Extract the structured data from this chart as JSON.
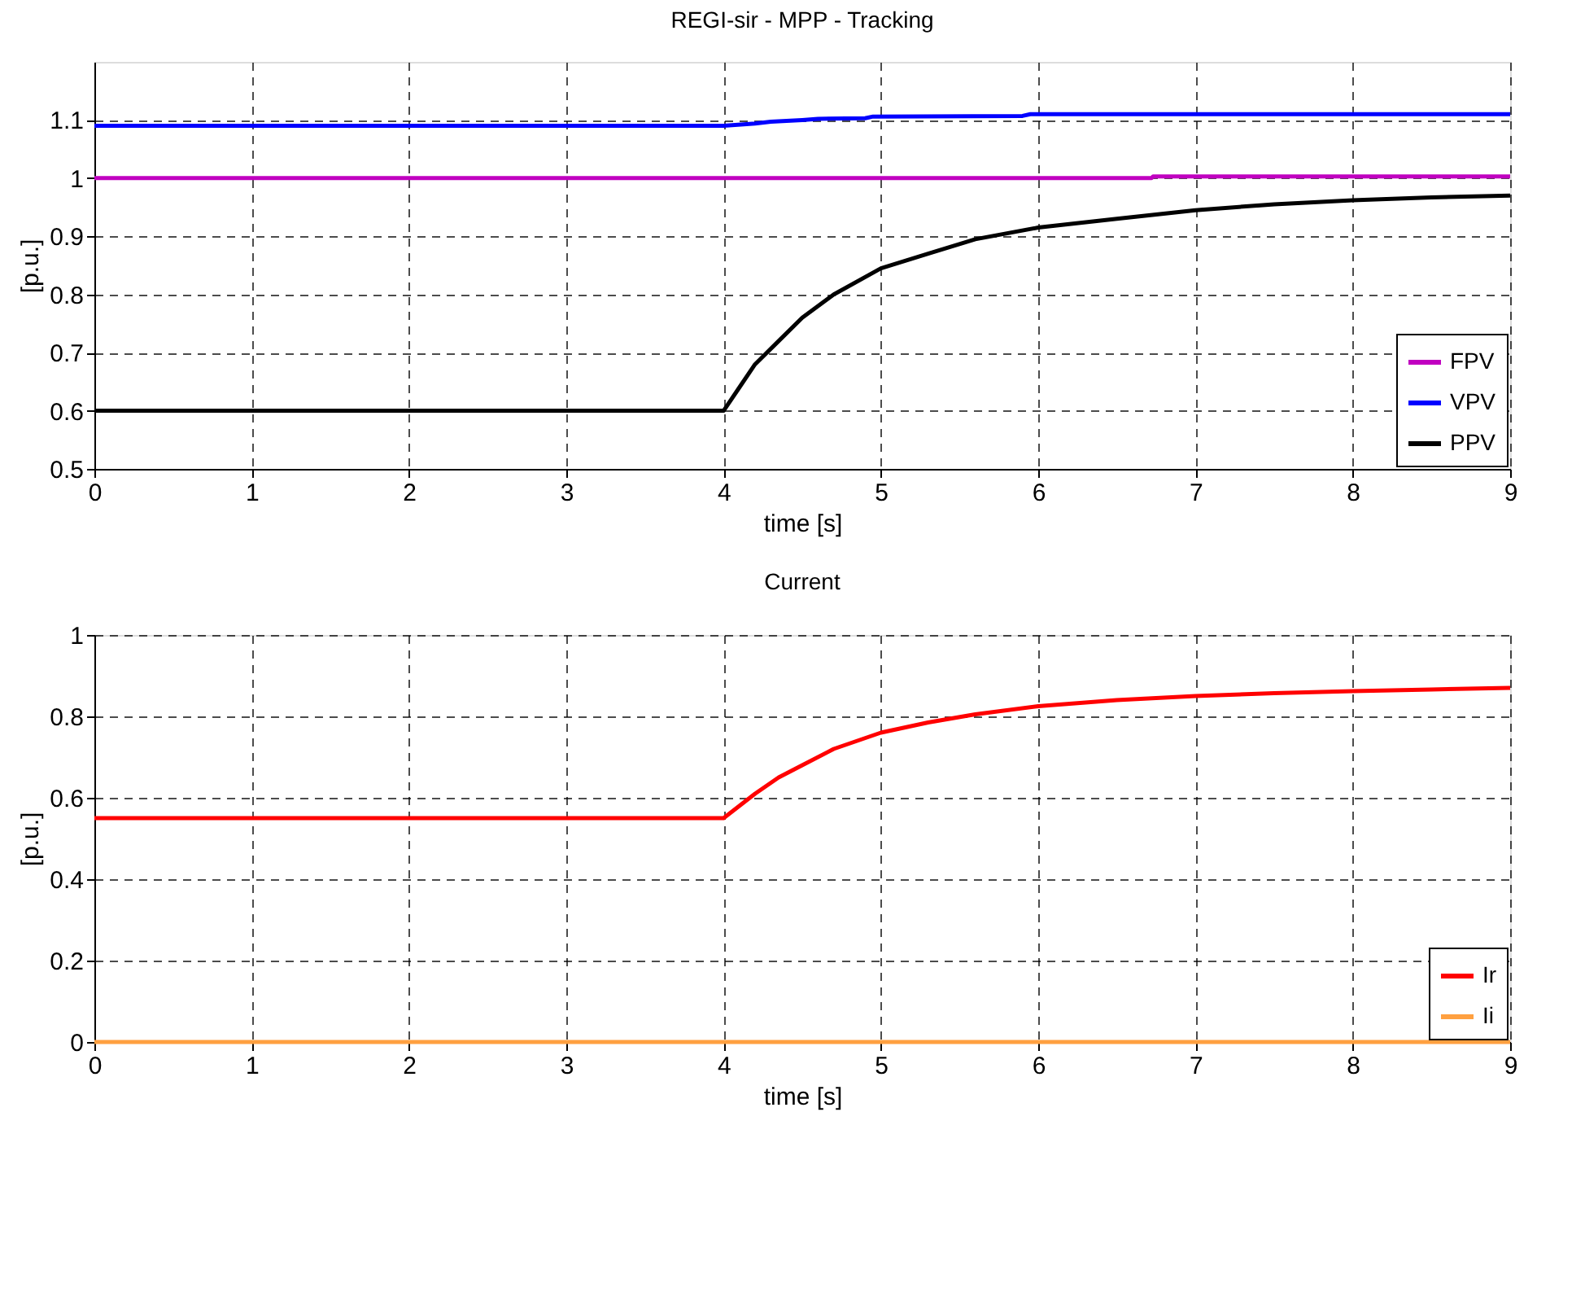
{
  "chart_data": [
    {
      "type": "line",
      "title": "REGI-sir -  MPP - Tracking",
      "xlabel": "time [s]",
      "ylabel": "[p.u.]",
      "xlim": [
        0,
        9
      ],
      "xticks": [
        0,
        1,
        2,
        3,
        4,
        5,
        6,
        7,
        8,
        9
      ],
      "ylim": [
        0.5,
        1.2
      ],
      "yticks": [
        0.5,
        0.6,
        0.7,
        0.8,
        0.9,
        1,
        1.1
      ],
      "grid": true,
      "legend": "bottom right",
      "line_style": "solid",
      "marker": "none",
      "series": [
        {
          "name": "FPV",
          "color": "#c000c0",
          "x": [
            0,
            6.72,
            6.73,
            9
          ],
          "values": [
            1.0,
            1.0,
            1.003,
            1.003
          ]
        },
        {
          "name": "VPV",
          "color": "#0000ff",
          "x": [
            0,
            4.0,
            4.2,
            4.3,
            4.5,
            4.6,
            4.9,
            4.95,
            5.9,
            5.95,
            9
          ],
          "values": [
            1.09,
            1.09,
            1.094,
            1.097,
            1.1,
            1.102,
            1.103,
            1.106,
            1.107,
            1.11,
            1.11
          ]
        },
        {
          "name": "PPV",
          "color": "#000000",
          "x": [
            0,
            4.0,
            4.1,
            4.2,
            4.35,
            4.5,
            4.7,
            5.0,
            5.3,
            5.6,
            6.0,
            6.5,
            7.0,
            7.5,
            8.0,
            8.5,
            9.0
          ],
          "values": [
            0.6,
            0.6,
            0.64,
            0.68,
            0.72,
            0.76,
            0.8,
            0.845,
            0.87,
            0.895,
            0.915,
            0.93,
            0.945,
            0.955,
            0.962,
            0.967,
            0.97
          ]
        }
      ]
    },
    {
      "type": "line",
      "title": "Current",
      "xlabel": "time [s]",
      "ylabel": "[p.u.]",
      "xlim": [
        0,
        9
      ],
      "xticks": [
        0,
        1,
        2,
        3,
        4,
        5,
        6,
        7,
        8,
        9
      ],
      "ylim": [
        0,
        1
      ],
      "yticks": [
        0,
        0.2,
        0.4,
        0.6,
        0.8,
        1
      ],
      "grid": true,
      "legend": "bottom right",
      "line_style": "solid",
      "marker": "none",
      "series": [
        {
          "name": "Ir",
          "color": "#ff0000",
          "x": [
            0,
            4.0,
            4.1,
            4.2,
            4.35,
            4.5,
            4.7,
            5.0,
            5.3,
            5.6,
            6.0,
            6.5,
            7.0,
            7.5,
            8.0,
            8.5,
            9.0
          ],
          "values": [
            0.55,
            0.55,
            0.58,
            0.61,
            0.65,
            0.68,
            0.72,
            0.76,
            0.785,
            0.805,
            0.825,
            0.84,
            0.85,
            0.857,
            0.862,
            0.866,
            0.87
          ]
        },
        {
          "name": "Ii",
          "color": "#ffa040",
          "x": [
            0,
            9
          ],
          "values": [
            0,
            0
          ]
        }
      ]
    }
  ]
}
